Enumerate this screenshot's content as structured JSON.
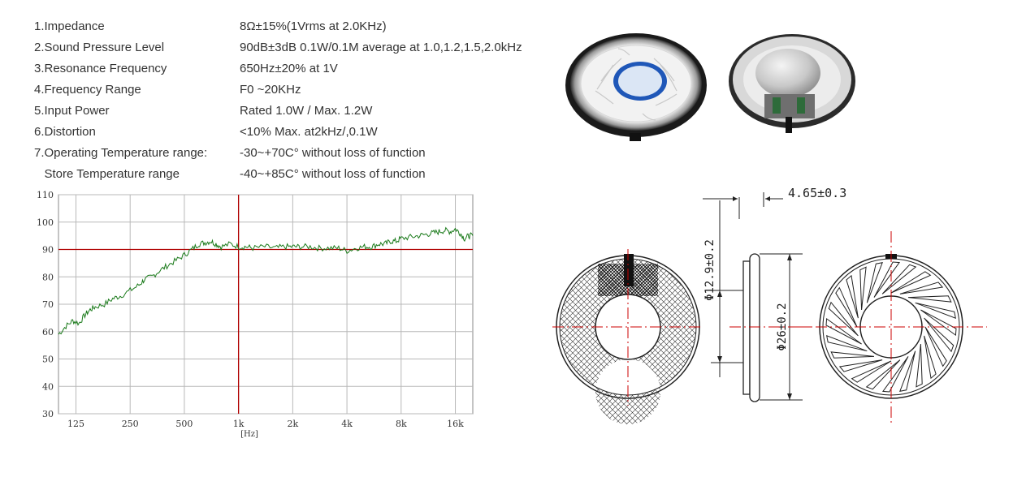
{
  "specs": [
    {
      "label": "1.Impedance",
      "value": "8Ω±15%(1Vrms at 2.0KHz)"
    },
    {
      "label": "2.Sound Pressure Level",
      "value": "90dB±3dB  0.1W/0.1M average at 1.0,1.2,1.5,2.0kHz"
    },
    {
      "label": "3.Resonance Frequency",
      "value": "650Hz±20% at 1V"
    },
    {
      "label": "4.Frequency Range",
      "value": "F0 ~20KHz"
    },
    {
      "label": "5.Input Power",
      "value": "Rated 1.0W / Max. 1.2W"
    },
    {
      "label": "6.Distortion",
      "value": "<10% Max. at2kHz/,0.1W"
    },
    {
      "label": "7.Operating Temperature range:",
      "value": "-30~+70C°  without loss of function"
    },
    {
      "label": "   Store Temperature range",
      "value": "-40~+85C°   without loss of function"
    }
  ],
  "drawing": {
    "depth_label": "4.65±0.3",
    "inner_diameter_label": "Φ12.9±0.2",
    "outer_diameter_label": "Φ26±0.2"
  },
  "colors": {
    "curve": "#1a7a1a",
    "reference": "#b00000",
    "grid": "#b8b8b8"
  },
  "chart_data": {
    "type": "line",
    "xlabel": "[Hz]",
    "x_scale": "log",
    "xlim": [
      100,
      20000
    ],
    "ylim": [
      30,
      110
    ],
    "x_ticks": [
      125,
      250,
      500,
      1000,
      2000,
      4000,
      8000,
      16000
    ],
    "x_tick_labels": [
      "125",
      "250",
      "500",
      "1k",
      "2k",
      "4k",
      "8k",
      "16k"
    ],
    "y_ticks": [
      30,
      40,
      50,
      60,
      70,
      80,
      90,
      100,
      110
    ],
    "y_tick_labels": [
      "30",
      "40",
      "50",
      "60",
      "70",
      "80",
      "90",
      "100",
      "110"
    ],
    "reference_lines": {
      "x": 1000,
      "y": 90
    },
    "grid": true,
    "series": [
      {
        "x": [
          100,
          110,
          120,
          130,
          140,
          150,
          160,
          180,
          200,
          220,
          250,
          280,
          300,
          330,
          360,
          400,
          450,
          500,
          550,
          600,
          650,
          700,
          750,
          800,
          900,
          1000,
          1100,
          1200,
          1400,
          1600,
          1800,
          2000,
          2200,
          2500,
          2800,
          3200,
          3600,
          4000,
          4500,
          5000,
          5500,
          6000,
          6500,
          7000,
          7500,
          8000,
          9000,
          10000,
          11000,
          12000,
          13000,
          14000,
          15000,
          16000,
          17000,
          18000,
          19000,
          20000
        ],
        "y": [
          59,
          62,
          64,
          63,
          66,
          68,
          69,
          70,
          72,
          73,
          75,
          77,
          79,
          80,
          82,
          84,
          86,
          88,
          90,
          92,
          92.5,
          93,
          92,
          91,
          92,
          91,
          91,
          90.5,
          91,
          90.5,
          91,
          91,
          91,
          91,
          90.5,
          90.5,
          90.5,
          89.5,
          90.5,
          91,
          91,
          92,
          92,
          93,
          93,
          94,
          94.5,
          95,
          95.5,
          96,
          96.5,
          97,
          96.5,
          97.5,
          96,
          94,
          95,
          95
        ]
      }
    ]
  }
}
